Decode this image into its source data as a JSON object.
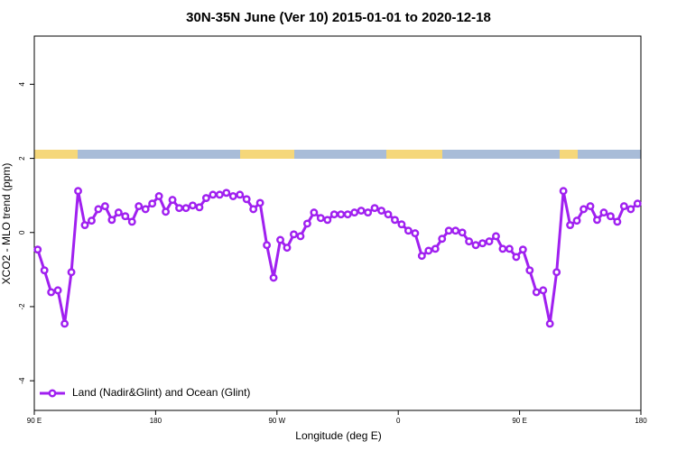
{
  "chart_data": {
    "type": "line",
    "title": "30N-35N June (Ver 10)   2015-01-01 to 2020-12-18",
    "x_label": "Longitude (deg E)",
    "y_label": "XCO2 - MLO trend (ppm)",
    "x": [
      92.5,
      97.5,
      102.5,
      107.5,
      112.5,
      117.5,
      122.5,
      127.5,
      132.5,
      137.5,
      142.5,
      147.5,
      152.5,
      157.5,
      162.5,
      167.5,
      172.5,
      177.5,
      182.5,
      187.5,
      192.5,
      197.5,
      202.5,
      207.5,
      212.5,
      217.5,
      222.5,
      227.5,
      232.5,
      237.5,
      242.5,
      247.5,
      252.5,
      257.5,
      262.5,
      267.5,
      272.5,
      277.5,
      282.5,
      287.5,
      292.5,
      297.5,
      302.5,
      307.5,
      312.5,
      317.5,
      322.5,
      327.5,
      332.5,
      337.5,
      342.5,
      347.5,
      352.5,
      357.5,
      362.5,
      367.5,
      372.5,
      377.5,
      382.5,
      387.5,
      392.5,
      397.5,
      402.5,
      407.5,
      412.5,
      417.5,
      422.5,
      427.5,
      432.5,
      437.5,
      442.5,
      447.5,
      452.5,
      457.5,
      462.5,
      467.5,
      472.5,
      477.5,
      482.5,
      487.5,
      492.5,
      497.5,
      502.5,
      507.5,
      512.5,
      517.5,
      522.5,
      527.5,
      532.5,
      537.5
    ],
    "series": [
      {
        "name": "Land (Nadir&Glint) and Ocean (Glint)",
        "color": "#a020f0",
        "values": [
          -0.46,
          -1.02,
          -1.61,
          -1.56,
          -2.46,
          -1.07,
          1.12,
          0.2,
          0.32,
          0.63,
          0.71,
          0.34,
          0.54,
          0.44,
          0.29,
          0.71,
          0.63,
          0.78,
          0.98,
          0.56,
          0.88,
          0.66,
          0.66,
          0.73,
          0.68,
          0.93,
          1.02,
          1.02,
          1.07,
          0.98,
          1.02,
          0.9,
          0.63,
          0.8,
          -0.34,
          -1.22,
          -0.2,
          -0.41,
          -0.05,
          -0.1,
          0.24,
          0.54,
          0.39,
          0.34,
          0.49,
          0.49,
          0.49,
          0.54,
          0.59,
          0.54,
          0.66,
          0.59,
          0.49,
          0.34,
          0.22,
          0.05,
          -0.02,
          -0.63,
          -0.49,
          -0.44,
          -0.17,
          0.05,
          0.05,
          0,
          -0.24,
          -0.34,
          -0.29,
          -0.24,
          -0.1,
          -0.44,
          -0.44,
          -0.66,
          -0.46,
          -1.02,
          -1.61,
          -1.56,
          -2.46,
          -1.07,
          1.12,
          0.2,
          0.32,
          0.63,
          0.71,
          0.34,
          0.54,
          0.44,
          0.29,
          0.71,
          0.63,
          0.78
        ]
      }
    ],
    "xlim": [
      90,
      540
    ],
    "xticks": [
      {
        "value": 90,
        "label": "90 E"
      },
      {
        "value": 180,
        "label": "180"
      },
      {
        "value": 270,
        "label": "90 W"
      },
      {
        "value": 360,
        "label": "0"
      },
      {
        "value": 450,
        "label": "90 E"
      },
      {
        "value": 540,
        "label": "180"
      }
    ],
    "ylim": [
      -4.8,
      5.3
    ],
    "yticks": [
      -4,
      -2,
      0,
      2,
      4
    ],
    "legend": "bottom-left"
  }
}
